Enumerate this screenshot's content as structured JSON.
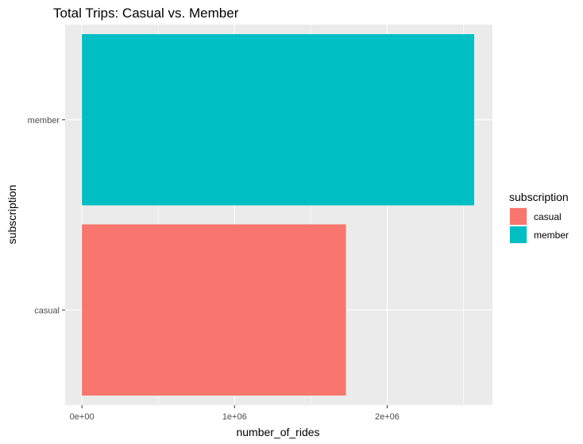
{
  "chart_data": {
    "type": "bar",
    "orientation": "horizontal",
    "title": "Total Trips: Casual vs. Member",
    "xlabel": "number_of_rides",
    "ylabel": "subscription",
    "categories": [
      "casual",
      "member"
    ],
    "values": [
      1730000,
      2570000
    ],
    "colors": {
      "casual": "#F8766D",
      "member": "#00BFC4"
    },
    "xlim": [
      -110000,
      2690000
    ],
    "x_ticks": [
      0,
      1000000,
      2000000
    ],
    "x_tick_labels": [
      "0e+00",
      "1e+06",
      "2e+06"
    ],
    "grid": true,
    "panel_background": "#EBEBEB",
    "legend": {
      "title": "subscription",
      "position": "right",
      "entries": [
        "casual",
        "member"
      ]
    }
  }
}
